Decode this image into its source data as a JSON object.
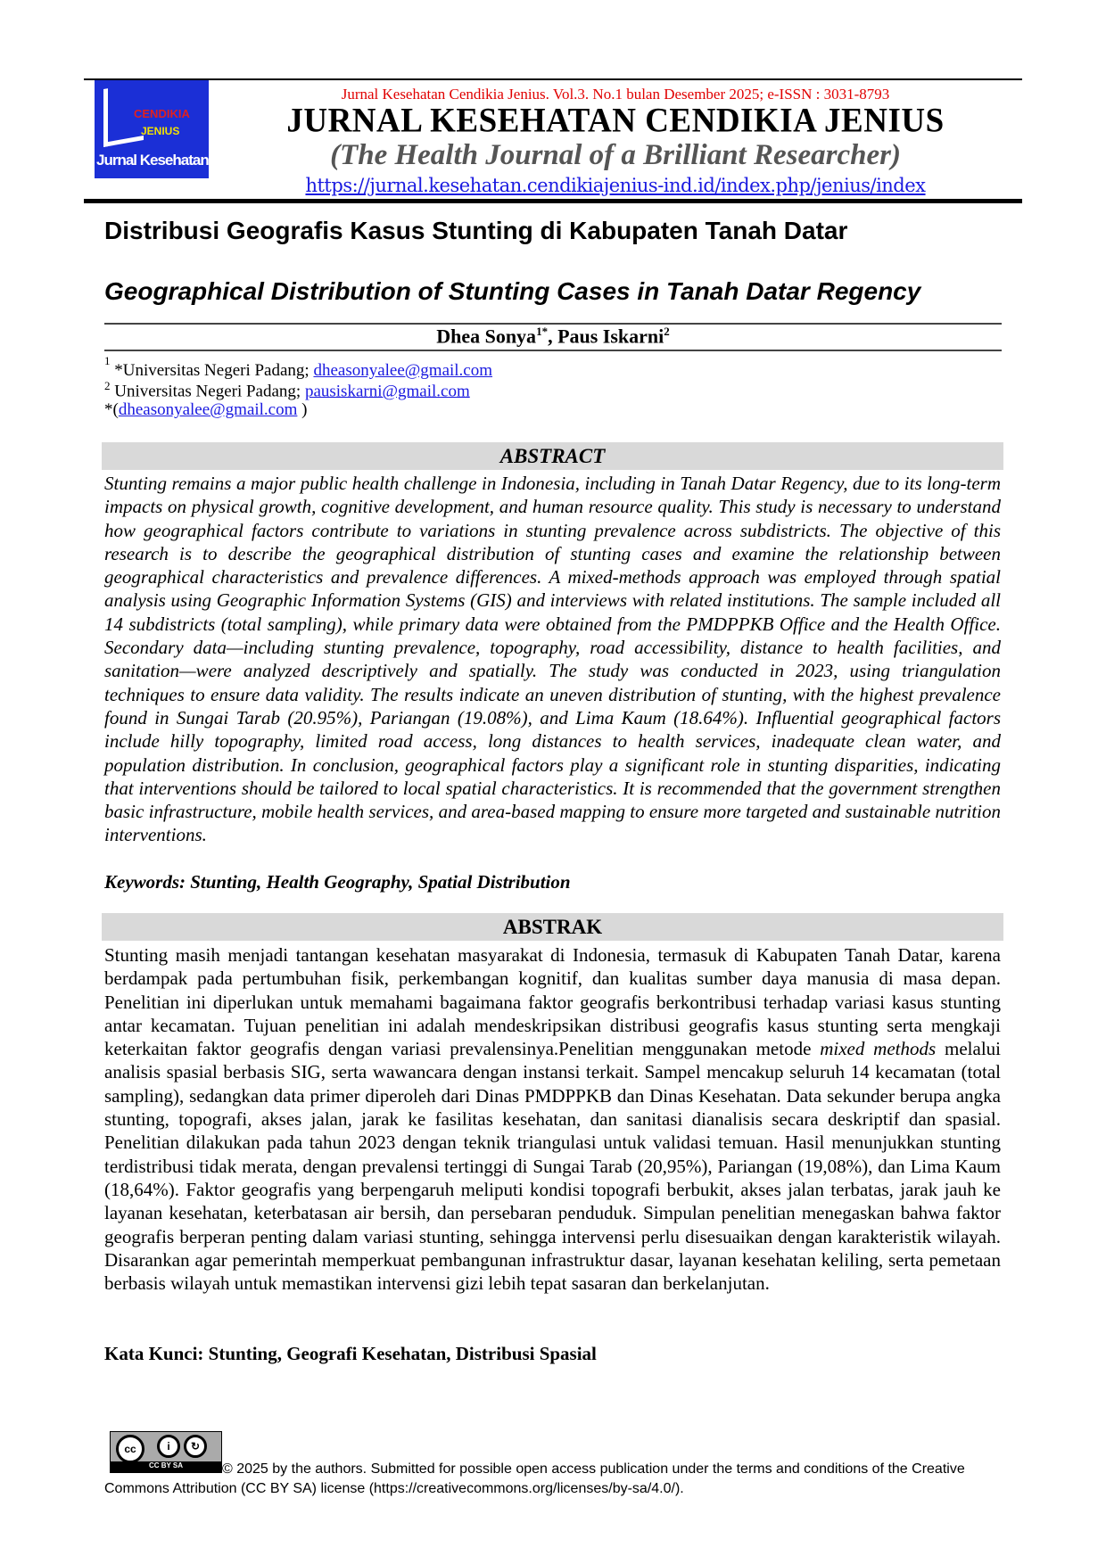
{
  "header": {
    "logo_text": "Jurnal Kesehatan CENDIKIA JENIUS",
    "citation_line": "Jurnal Kesehatan Cendikia Jenius. Vol.3. No.1 bulan Desember 2025; e-ISSN : 3031-8793",
    "journal_title": "JURNAL KESEHATAN CENDIKIA JENIUS",
    "journal_subtitle": "(The Health Journal of a Brilliant Researcher)",
    "url": "https://jurnal.kesehatan.cendikiajenius-ind.id/index.php/jenius/index",
    "accent_color": "#e00000",
    "link_color": "#1a1ae0"
  },
  "article": {
    "title_id": "Distribusi Geografis Kasus Stunting di Kabupaten Tanah Datar",
    "title_en": "Geographical Distribution of Stunting Cases in Tanah Datar Regency",
    "authors": [
      {
        "name": "Dhea Sonya",
        "sup": "1*"
      },
      {
        "name": "Paus Iskarni",
        "sup": "2"
      }
    ],
    "affiliations": [
      {
        "sup": "1",
        "text": " *Universitas Negeri Padang; ",
        "email": "dheasonyalee@gmail.com"
      },
      {
        "sup": "2",
        "text": " Universitas Negeri Padang; ",
        "email": "pausiskarni@gmail.com"
      }
    ],
    "corresponding": {
      "prefix": "*(",
      "email": "dheasonyalee@gmail.com",
      "suffix": " )"
    }
  },
  "abstract": {
    "heading": "ABSTRACT",
    "text": "Stunting remains a major public health challenge in Indonesia, including in Tanah Datar Regency, due to its long-term impacts on physical growth, cognitive development, and human resource quality. This study is necessary to understand how geographical factors contribute to variations in stunting prevalence across subdistricts. The objective of this research is to describe the geographical distribution of stunting cases and examine the relationship between geographical characteristics and prevalence differences. A mixed-methods approach was employed through spatial analysis using Geographic Information Systems (GIS) and interviews with related institutions. The sample included all 14 subdistricts (total sampling), while primary data were obtained from the PMDPPKB Office and the Health Office. Secondary data—including stunting prevalence, topography, road accessibility, distance to health facilities, and sanitation—were analyzed descriptively and spatially. The study was conducted in 2023, using triangulation techniques to ensure data validity. The results indicate an uneven distribution of stunting, with the highest prevalence found in Sungai Tarab (20.95%), Pariangan (19.08%), and Lima Kaum (18.64%). Influential geographical factors include hilly topography, limited road access, long distances to health services, inadequate clean water, and population distribution. In conclusion, geographical factors play a significant role in stunting disparities, indicating that interventions should be tailored to local spatial characteristics. It is recommended that the government strengthen basic infrastructure, mobile health services, and area-based mapping to ensure more targeted and sustainable nutrition interventions.",
    "keywords_label": "Keywords",
    "keywords": ": Stunting, Health Geography, Spatial Distribution"
  },
  "abstrak": {
    "heading": "ABSTRAK",
    "text_1": "Stunting masih menjadi tantangan kesehatan masyarakat di Indonesia, termasuk di Kabupaten Tanah Datar, karena berdampak pada pertumbuhan fisik, perkembangan kognitif, dan kualitas sumber daya manusia di masa depan. Penelitian ini diperlukan untuk memahami bagaimana faktor geografis berkontribusi terhadap variasi kasus stunting antar kecamatan. Tujuan penelitian ini adalah mendeskripsikan distribusi geografis kasus stunting serta mengkaji keterkaitan faktor geografis dengan variasi prevalensinya.Penelitian menggunakan metode ",
    "text_italic": "mixed methods",
    "text_2": " melalui analisis spasial berbasis SIG, serta wawancara dengan instansi terkait. Sampel mencakup seluruh 14 kecamatan (total sampling), sedangkan data primer diperoleh dari Dinas PMDPPKB dan Dinas Kesehatan. Data sekunder berupa angka stunting, topografi, akses jalan, jarak ke fasilitas kesehatan, dan sanitasi dianalisis secara deskriptif dan spasial. Penelitian dilakukan pada tahun 2023 dengan teknik triangulasi untuk validasi temuan. Hasil menunjukkan stunting terdistribusi tidak merata, dengan prevalensi tertinggi di Sungai Tarab (20,95%), Pariangan (19,08%), dan Lima Kaum (18,64%). Faktor geografis yang berpengaruh meliputi kondisi topografi berbukit, akses jalan terbatas, jarak jauh ke layanan kesehatan, keterbatasan air bersih, dan persebaran penduduk. Simpulan penelitian menegaskan bahwa faktor geografis berperan penting dalam variasi stunting, sehingga intervensi perlu disesuaikan dengan karakteristik wilayah. Disarankan agar pemerintah memperkuat pembangunan infrastruktur dasar, layanan kesehatan keliling, serta pemetaan berbasis wilayah untuk memastikan intervensi gizi lebih tepat sasaran dan berkelanjutan.",
    "keywords": "Kata Kunci: Stunting, Geografi Kesehatan, Distribusi Spasial"
  },
  "footer": {
    "license_badge": "CC BY SA",
    "license_text": "© 2025 by the authors. Submitted for possible open access publication under the terms and conditions of the Creative Commons Attribution (CC BY SA) license (https://creativecommons.org/licenses/by-sa/4.0/)."
  }
}
